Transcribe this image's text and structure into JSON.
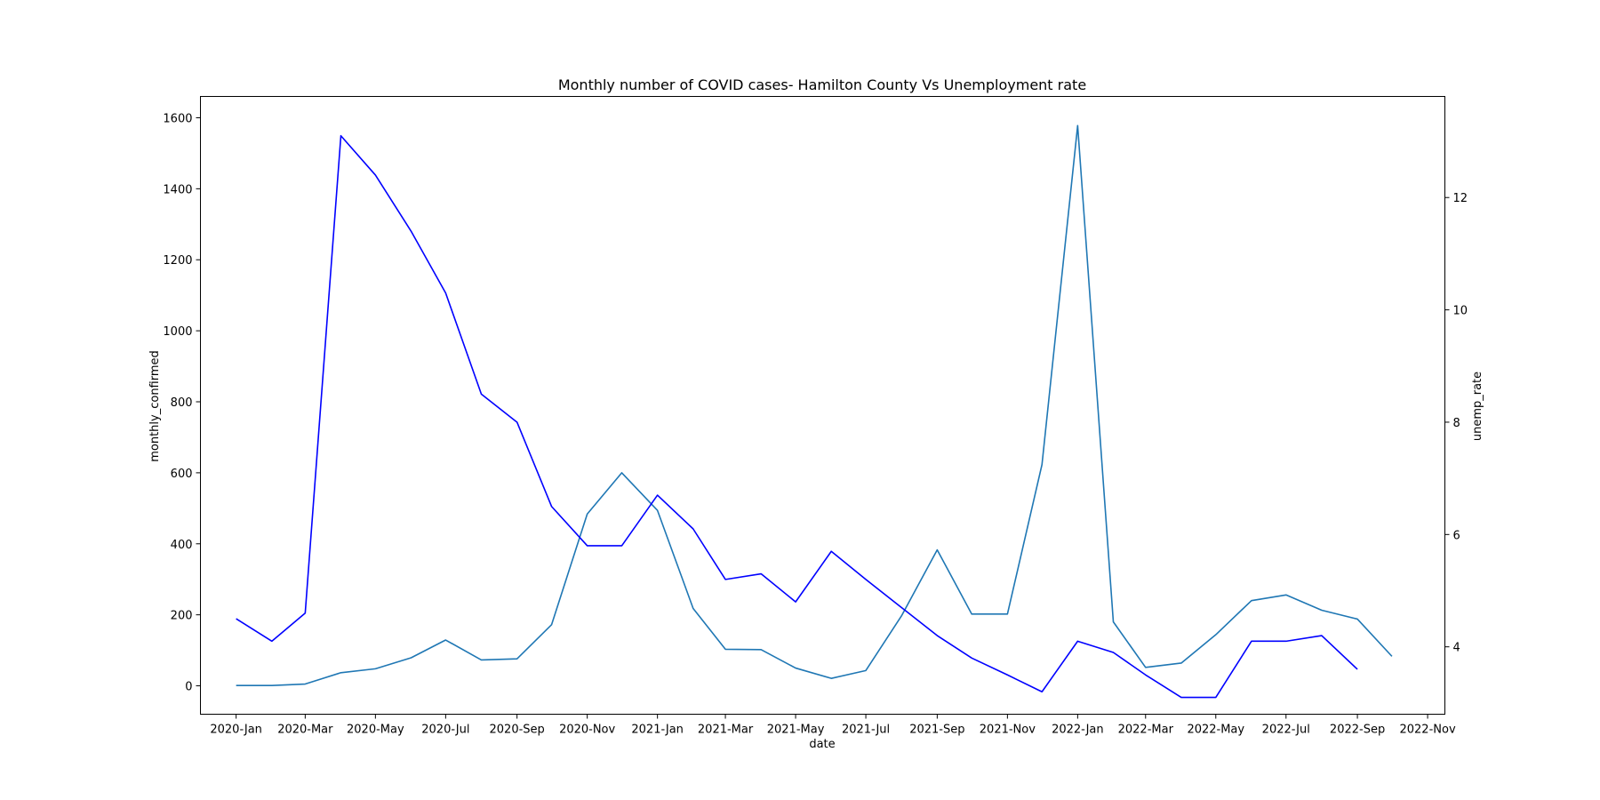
{
  "chart_data": {
    "type": "line",
    "title": "Monthly number of COVID cases- Hamilton County Vs Unemployment rate",
    "xlabel": "date",
    "ylabel_left": "monthly_confirmed",
    "ylabel_right": "unemp_rate",
    "x_ticks": [
      "2020-Jan",
      "2020-Mar",
      "2020-May",
      "2020-Jul",
      "2020-Sep",
      "2020-Nov",
      "2021-Jan",
      "2021-Mar",
      "2021-May",
      "2021-Jul",
      "2021-Sep",
      "2021-Nov",
      "2022-Jan",
      "2022-Mar",
      "2022-May",
      "2022-Jul",
      "2022-Sep",
      "2022-Nov"
    ],
    "y_left_ticks": [
      0,
      200,
      400,
      600,
      800,
      1000,
      1200,
      1400,
      1600
    ],
    "y_right_ticks": [
      4,
      6,
      8,
      10,
      12
    ],
    "x_range": [
      "2019-12-01",
      "2022-11-16"
    ],
    "y_left_range": [
      -80,
      1660
    ],
    "y_right_range": [
      2.8,
      13.8
    ],
    "grid": false,
    "series": [
      {
        "axis": "left",
        "color": "#1f77b4",
        "x": [
          "2020-01-01",
          "2020-02-01",
          "2020-03-01",
          "2020-04-01",
          "2020-05-01",
          "2020-06-01",
          "2020-07-01",
          "2020-08-01",
          "2020-09-01",
          "2020-10-01",
          "2020-11-01",
          "2020-12-01",
          "2021-01-01",
          "2021-02-01",
          "2021-03-01",
          "2021-04-01",
          "2021-05-01",
          "2021-06-01",
          "2021-07-01",
          "2021-08-01",
          "2021-09-01",
          "2021-10-01",
          "2021-11-01",
          "2021-12-01",
          "2022-01-01",
          "2022-02-01",
          "2022-03-01",
          "2022-04-01",
          "2022-05-01",
          "2022-06-01",
          "2022-07-01",
          "2022-08-01",
          "2022-09-01",
          "2022-10-01"
        ],
        "values": [
          1,
          1,
          5,
          37,
          48,
          79,
          129,
          73,
          76,
          172,
          484,
          600,
          494,
          218,
          103,
          102,
          50,
          21,
          43,
          197,
          383,
          202,
          202,
          623,
          1578,
          180,
          52,
          64,
          144,
          240,
          256,
          213,
          188,
          83
        ]
      },
      {
        "axis": "right",
        "color": "#0000ff",
        "x": [
          "2020-01-01",
          "2020-02-01",
          "2020-03-01",
          "2020-04-01",
          "2020-05-01",
          "2020-06-01",
          "2020-07-01",
          "2020-08-01",
          "2020-09-01",
          "2020-10-01",
          "2020-11-01",
          "2020-12-01",
          "2021-01-01",
          "2021-02-01",
          "2021-03-01",
          "2021-04-01",
          "2021-05-01",
          "2021-06-01",
          "2021-07-01",
          "2021-08-01",
          "2021-09-01",
          "2021-10-01",
          "2021-11-01",
          "2021-12-01",
          "2022-01-01",
          "2022-02-01",
          "2022-03-01",
          "2022-04-01",
          "2022-05-01",
          "2022-06-01",
          "2022-07-01",
          "2022-08-01",
          "2022-09-01"
        ],
        "values": [
          4.5,
          4.1,
          4.6,
          13.1,
          12.4,
          11.4,
          10.3,
          8.5,
          8.0,
          6.5,
          5.8,
          5.8,
          6.7,
          6.1,
          5.2,
          5.3,
          4.8,
          5.7,
          5.2,
          4.7,
          4.2,
          3.8,
          3.5,
          3.2,
          4.1,
          3.9,
          3.5,
          3.1,
          3.1,
          4.1,
          4.1,
          4.2,
          3.6
        ]
      }
    ]
  }
}
